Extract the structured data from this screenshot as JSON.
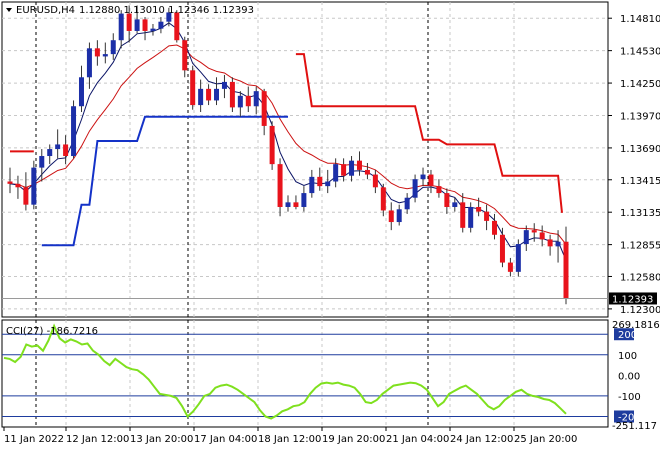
{
  "header": {
    "symbol_tf": "EURUSD,H4",
    "ohlc": "1.12880 1.13010 1.12346 1.12393"
  },
  "price_axis": {
    "labels": [
      "1.14810",
      "1.14530",
      "1.14250",
      "1.13970",
      "1.13690",
      "1.13415",
      "1.13135",
      "1.12855",
      "1.12580",
      "1.12300"
    ],
    "current_price": "1.12393",
    "ylim": [
      1.1223,
      1.1495
    ]
  },
  "cci": {
    "title": "CCI(27) -186.7216",
    "axis_labels": [
      "269.1816",
      "200",
      "100",
      "0.00",
      "-100",
      "-200",
      "-251.117"
    ],
    "ylim": [
      -251.117,
      269.1816
    ],
    "levels": [
      200,
      100,
      -100,
      -200
    ],
    "level_color": "#1e3c9e",
    "line_color": "#7fe01e",
    "values": [
      85,
      80,
      65,
      90,
      150,
      140,
      145,
      120,
      170,
      240,
      180,
      160,
      175,
      165,
      150,
      155,
      120,
      100,
      70,
      50,
      80,
      60,
      40,
      30,
      25,
      5,
      -20,
      -55,
      -90,
      -95,
      -100,
      -110,
      -150,
      -200,
      -175,
      -140,
      -100,
      -90,
      -60,
      -50,
      -45,
      -55,
      -70,
      -90,
      -110,
      -130,
      -170,
      -200,
      -210,
      -195,
      -175,
      -165,
      -150,
      -145,
      -130,
      -90,
      -60,
      -40,
      -35,
      -40,
      -35,
      -45,
      -50,
      -60,
      -90,
      -130,
      -135,
      -120,
      -90,
      -70,
      -50,
      -45,
      -40,
      -35,
      -38,
      -50,
      -70,
      -110,
      -150,
      -130,
      -90,
      -75,
      -60,
      -50,
      -70,
      -90,
      -120,
      -150,
      -165,
      -150,
      -120,
      -100,
      -80,
      -70,
      -90,
      -100,
      -105,
      -115,
      -120,
      -135,
      -160,
      -186.7
    ]
  },
  "time_axis": {
    "labels": [
      "11 Jan 2022",
      "12 Jan 12:00",
      "13 Jan 20:00",
      "17 Jan 04:00",
      "18 Jan 12:00",
      "19 Jan 20:00",
      "21 Jan 04:00",
      "24 Jan 12:00",
      "25 Jan 20:00"
    ]
  },
  "colors": {
    "bull": "#1c2fa8",
    "bear": "#e8131c",
    "ma_fast": "#0b1466",
    "ma_slow": "#cc1212",
    "stop_up": "#1432c8",
    "stop_down": "#e01010"
  },
  "chart_data": {
    "type": "candlestick",
    "series": [
      {
        "name": "EURUSD,H4",
        "ohlc": [
          [
            1.134,
            1.1352,
            1.133,
            1.1338
          ],
          [
            1.1338,
            1.1345,
            1.1325,
            1.1335
          ],
          [
            1.1335,
            1.1348,
            1.1315,
            1.132
          ],
          [
            1.132,
            1.1358,
            1.1316,
            1.1352
          ],
          [
            1.1352,
            1.1368,
            1.134,
            1.1362
          ],
          [
            1.1362,
            1.1372,
            1.1355,
            1.1368
          ],
          [
            1.1368,
            1.1385,
            1.136,
            1.1372
          ],
          [
            1.1372,
            1.138,
            1.1355,
            1.1362
          ],
          [
            1.1362,
            1.141,
            1.136,
            1.1405
          ],
          [
            1.1405,
            1.144,
            1.14,
            1.143
          ],
          [
            1.143,
            1.146,
            1.142,
            1.1455
          ],
          [
            1.1455,
            1.1462,
            1.144,
            1.1448
          ],
          [
            1.1448,
            1.146,
            1.1442,
            1.145
          ],
          [
            1.145,
            1.1468,
            1.1445,
            1.1462
          ],
          [
            1.1462,
            1.1488,
            1.1455,
            1.1485
          ],
          [
            1.1485,
            1.1492,
            1.146,
            1.147
          ],
          [
            1.147,
            1.1492,
            1.1468,
            1.148
          ],
          [
            1.148,
            1.1482,
            1.1462,
            1.147
          ],
          [
            1.147,
            1.1476,
            1.1466,
            1.1472
          ],
          [
            1.1472,
            1.1482,
            1.1468,
            1.1478
          ],
          [
            1.1478,
            1.149,
            1.1474,
            1.1486
          ],
          [
            1.1486,
            1.1488,
            1.146,
            1.1462
          ],
          [
            1.1462,
            1.1465,
            1.143,
            1.1436
          ],
          [
            1.1436,
            1.144,
            1.1402,
            1.1406
          ],
          [
            1.1406,
            1.1428,
            1.14,
            1.142
          ],
          [
            1.142,
            1.1424,
            1.1406,
            1.141
          ],
          [
            1.141,
            1.143,
            1.1406,
            1.142
          ],
          [
            1.142,
            1.1432,
            1.1412,
            1.1426
          ],
          [
            1.1426,
            1.143,
            1.14,
            1.1404
          ],
          [
            1.1404,
            1.1418,
            1.1396,
            1.1414
          ],
          [
            1.1414,
            1.1422,
            1.14,
            1.1405
          ],
          [
            1.1405,
            1.1422,
            1.1398,
            1.1418
          ],
          [
            1.1418,
            1.142,
            1.138,
            1.1388
          ],
          [
            1.1388,
            1.1392,
            1.135,
            1.1355
          ],
          [
            1.1355,
            1.136,
            1.131,
            1.1318
          ],
          [
            1.1318,
            1.1328,
            1.1314,
            1.1322
          ],
          [
            1.1322,
            1.1328,
            1.1316,
            1.1318
          ],
          [
            1.1318,
            1.1336,
            1.1314,
            1.133
          ],
          [
            1.133,
            1.135,
            1.1326,
            1.1344
          ],
          [
            1.1344,
            1.1352,
            1.1332,
            1.1336
          ],
          [
            1.1336,
            1.135,
            1.133,
            1.134
          ],
          [
            1.134,
            1.136,
            1.1335,
            1.1355
          ],
          [
            1.1355,
            1.136,
            1.134,
            1.1345
          ],
          [
            1.1345,
            1.1362,
            1.134,
            1.1358
          ],
          [
            1.1358,
            1.1366,
            1.1345,
            1.135
          ],
          [
            1.135,
            1.1356,
            1.1342,
            1.1346
          ],
          [
            1.1346,
            1.135,
            1.133,
            1.1335
          ],
          [
            1.1335,
            1.1338,
            1.131,
            1.1315
          ],
          [
            1.1315,
            1.1322,
            1.1298,
            1.1305
          ],
          [
            1.1305,
            1.132,
            1.1302,
            1.1316
          ],
          [
            1.1316,
            1.133,
            1.1312,
            1.1326
          ],
          [
            1.1326,
            1.1346,
            1.1322,
            1.1342
          ],
          [
            1.1342,
            1.1352,
            1.1336,
            1.1346
          ],
          [
            1.1346,
            1.135,
            1.133,
            1.1336
          ],
          [
            1.1336,
            1.1342,
            1.1326,
            1.133
          ],
          [
            1.133,
            1.1334,
            1.1312,
            1.1318
          ],
          [
            1.1318,
            1.1326,
            1.1314,
            1.1322
          ],
          [
            1.1322,
            1.133,
            1.1296,
            1.13
          ],
          [
            1.13,
            1.1322,
            1.1296,
            1.1318
          ],
          [
            1.1318,
            1.1326,
            1.131,
            1.1314
          ],
          [
            1.1314,
            1.132,
            1.1298,
            1.1306
          ],
          [
            1.1306,
            1.1312,
            1.129,
            1.1294
          ],
          [
            1.1294,
            1.13,
            1.1266,
            1.127
          ],
          [
            1.127,
            1.1274,
            1.1258,
            1.1262
          ],
          [
            1.1262,
            1.129,
            1.1258,
            1.1286
          ],
          [
            1.1286,
            1.1302,
            1.128,
            1.1298
          ],
          [
            1.1298,
            1.1304,
            1.1288,
            1.1296
          ],
          [
            1.1296,
            1.1302,
            1.1284,
            1.129
          ],
          [
            1.129,
            1.1294,
            1.1276,
            1.1284
          ],
          [
            1.1284,
            1.1298,
            1.127,
            1.1288
          ],
          [
            1.1288,
            1.1301,
            1.1234,
            1.1239
          ]
        ]
      }
    ]
  }
}
